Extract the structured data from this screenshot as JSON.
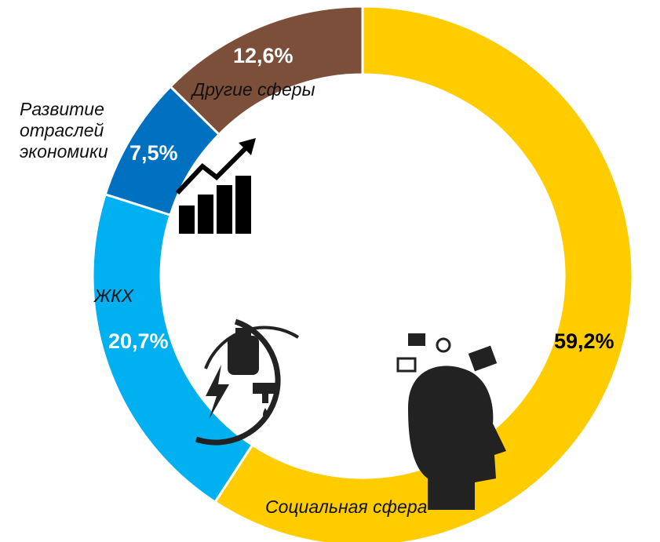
{
  "chart_data": {
    "type": "donut",
    "categories": [
      "Социальная сфера",
      "ЖКХ",
      "Развитие отраслей экономики",
      "Другие сферы"
    ],
    "values": [
      59.2,
      20.7,
      7.5,
      12.6
    ],
    "value_labels": [
      "59,2%",
      "20,7%",
      "7,5%",
      "12,6%"
    ],
    "colors": [
      "#ffcc00",
      "#00b0f0",
      "#0070c0",
      "#7b4f3a"
    ],
    "value_label_colors": [
      "#000000",
      "#ffffff",
      "#ffffff",
      "#ffffff"
    ]
  }
}
